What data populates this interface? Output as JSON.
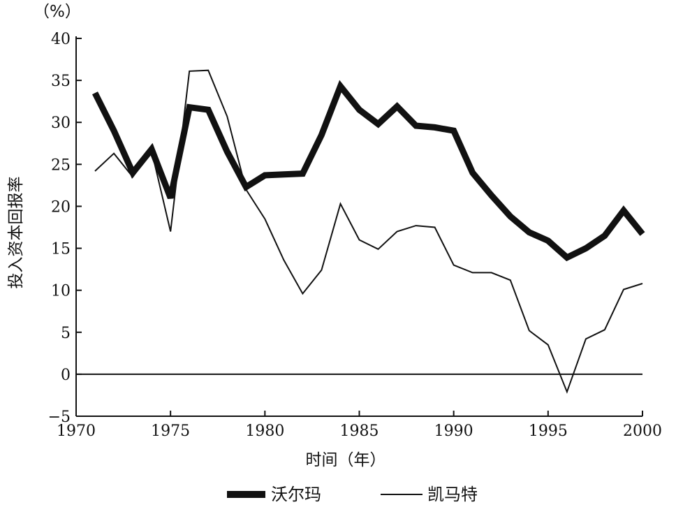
{
  "chart_data": {
    "type": "line",
    "title": "",
    "y_unit_label": "（%）",
    "xlabel": "时间（年）",
    "ylabel": "投入资本回报率",
    "xlim": [
      1970,
      2000
    ],
    "ylim": [
      -5,
      40
    ],
    "x_ticks": [
      1970,
      1975,
      1980,
      1985,
      1990,
      1995,
      2000
    ],
    "y_ticks": [
      -5,
      0,
      5,
      10,
      15,
      20,
      25,
      30,
      35,
      40
    ],
    "y_tick_labels": [
      "−5",
      "0",
      "5",
      "10",
      "15",
      "20",
      "25",
      "30",
      "35",
      "40"
    ],
    "zero_line": true,
    "grid": false,
    "legend_position": "bottom",
    "series": [
      {
        "name": "沃尔玛",
        "style": "thick",
        "color": "#111111",
        "x": [
          1971,
          1972,
          1973,
          1974,
          1975,
          1976,
          1977,
          1978,
          1979,
          1980,
          1981,
          1982,
          1983,
          1984,
          1985,
          1986,
          1987,
          1988,
          1989,
          1990,
          1991,
          1992,
          1993,
          1994,
          1995,
          1996,
          1997,
          1998,
          1999,
          2000
        ],
        "values": [
          33.5,
          29.0,
          24.0,
          26.8,
          21.0,
          31.8,
          31.5,
          26.5,
          22.3,
          23.7,
          23.8,
          23.9,
          28.5,
          34.3,
          31.5,
          29.8,
          31.9,
          29.6,
          29.4,
          29.0,
          24.0,
          21.3,
          18.8,
          16.9,
          15.9,
          13.9,
          15.0,
          16.5,
          19.5,
          16.7
        ]
      },
      {
        "name": "凯马特",
        "style": "thin",
        "color": "#111111",
        "x": [
          1971,
          1972,
          1973,
          1974,
          1975,
          1976,
          1977,
          1978,
          1979,
          1980,
          1981,
          1982,
          1983,
          1984,
          1985,
          1986,
          1987,
          1988,
          1989,
          1990,
          1991,
          1992,
          1993,
          1994,
          1995,
          1996,
          1997,
          1998,
          1999,
          2000
        ],
        "values": [
          24.2,
          26.3,
          23.5,
          26.6,
          17.0,
          36.1,
          36.2,
          30.7,
          22.0,
          18.5,
          13.6,
          9.6,
          12.4,
          20.3,
          16.0,
          14.9,
          17.0,
          17.7,
          17.5,
          13.0,
          12.1,
          12.1,
          11.2,
          5.2,
          3.5,
          -2.1,
          4.2,
          5.3,
          10.1,
          10.8
        ]
      }
    ]
  }
}
